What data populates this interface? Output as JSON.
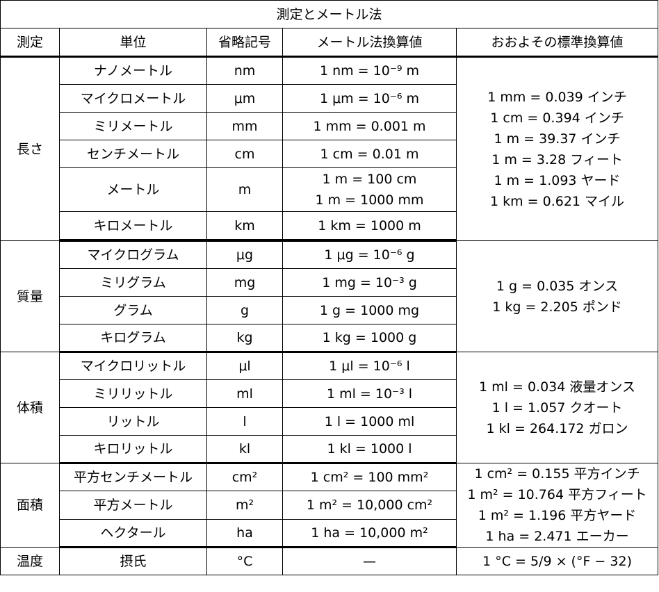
{
  "title": "測定とメートル法",
  "headers": {
    "measure": "測定",
    "unit": "単位",
    "abbr": "省略記号",
    "metric": "メートル法換算値",
    "approx": "おおよその標準換算値"
  },
  "length": {
    "category": "長さ",
    "rows": [
      {
        "unit": "ナノメートル",
        "abbr": "nm",
        "metric": "1 nm = 10⁻⁹ m"
      },
      {
        "unit": "マイクロメートル",
        "abbr": "μm",
        "metric": "1 μm = 10⁻⁶ m"
      },
      {
        "unit": "ミリメートル",
        "abbr": "mm",
        "metric": "1 mm = 0.001 m"
      },
      {
        "unit": "センチメートル",
        "abbr": "cm",
        "metric": "1 cm = 0.01 m"
      },
      {
        "unit": "メートル",
        "abbr": "m",
        "metric": "1 m = 100 cm",
        "metric2": "1 m = 1000 mm"
      },
      {
        "unit": "キロメートル",
        "abbr": "km",
        "metric": "1 km = 1000 m"
      }
    ],
    "approx": [
      "1 mm = 0.039 インチ",
      "1 cm = 0.394 インチ",
      "1 m = 39.37 インチ",
      "1 m = 3.28 フィート",
      "1 m = 1.093 ヤード",
      "1 km = 0.621 マイル"
    ]
  },
  "mass": {
    "category": "質量",
    "rows": [
      {
        "unit": "マイクログラム",
        "abbr": "μg",
        "metric": "1 μg = 10⁻⁶ g"
      },
      {
        "unit": "ミリグラム",
        "abbr": "mg",
        "metric": "1 mg = 10⁻³ g"
      },
      {
        "unit": "グラム",
        "abbr": "g",
        "metric": "1 g = 1000 mg"
      },
      {
        "unit": "キログラム",
        "abbr": "kg",
        "metric": "1 kg = 1000 g"
      }
    ],
    "approx": [
      "1 g = 0.035 オンス",
      "1 kg = 2.205 ポンド"
    ]
  },
  "volume": {
    "category": "体積",
    "rows": [
      {
        "unit": "マイクロリットル",
        "abbr": "μl",
        "metric": "1 μl = 10⁻⁶ l"
      },
      {
        "unit": "ミリリットル",
        "abbr": "ml",
        "metric": "1 ml = 10⁻³ l"
      },
      {
        "unit": "リットル",
        "abbr": "l",
        "metric": "1 l = 1000 ml"
      },
      {
        "unit": "キロリットル",
        "abbr": "kl",
        "metric": "1 kl = 1000 l"
      }
    ],
    "approx": [
      "1 ml = 0.034 液量オンス",
      "1 l = 1.057 クオート",
      "1 kl = 264.172 ガロン"
    ]
  },
  "area": {
    "category": "面積",
    "rows": [
      {
        "unit": "平方センチメートル",
        "abbr": "cm²",
        "metric": "1 cm² = 100 mm²"
      },
      {
        "unit": "平方メートル",
        "abbr": "m²",
        "metric": "1 m² = 10,000 cm²"
      },
      {
        "unit": "ヘクタール",
        "abbr": "ha",
        "metric": "1 ha = 10,000 m²"
      }
    ],
    "approx": [
      "1 cm² = 0.155 平方インチ",
      "1 m² = 10.764 平方フィート",
      "1 m² = 1.196 平方ヤード",
      "1 ha = 2.471 エーカー"
    ]
  },
  "temperature": {
    "category": "温度",
    "unit": "摂氏",
    "abbr": "°C",
    "metric": "—",
    "approx": "1 °C = 5/9 × (°F − 32)"
  }
}
